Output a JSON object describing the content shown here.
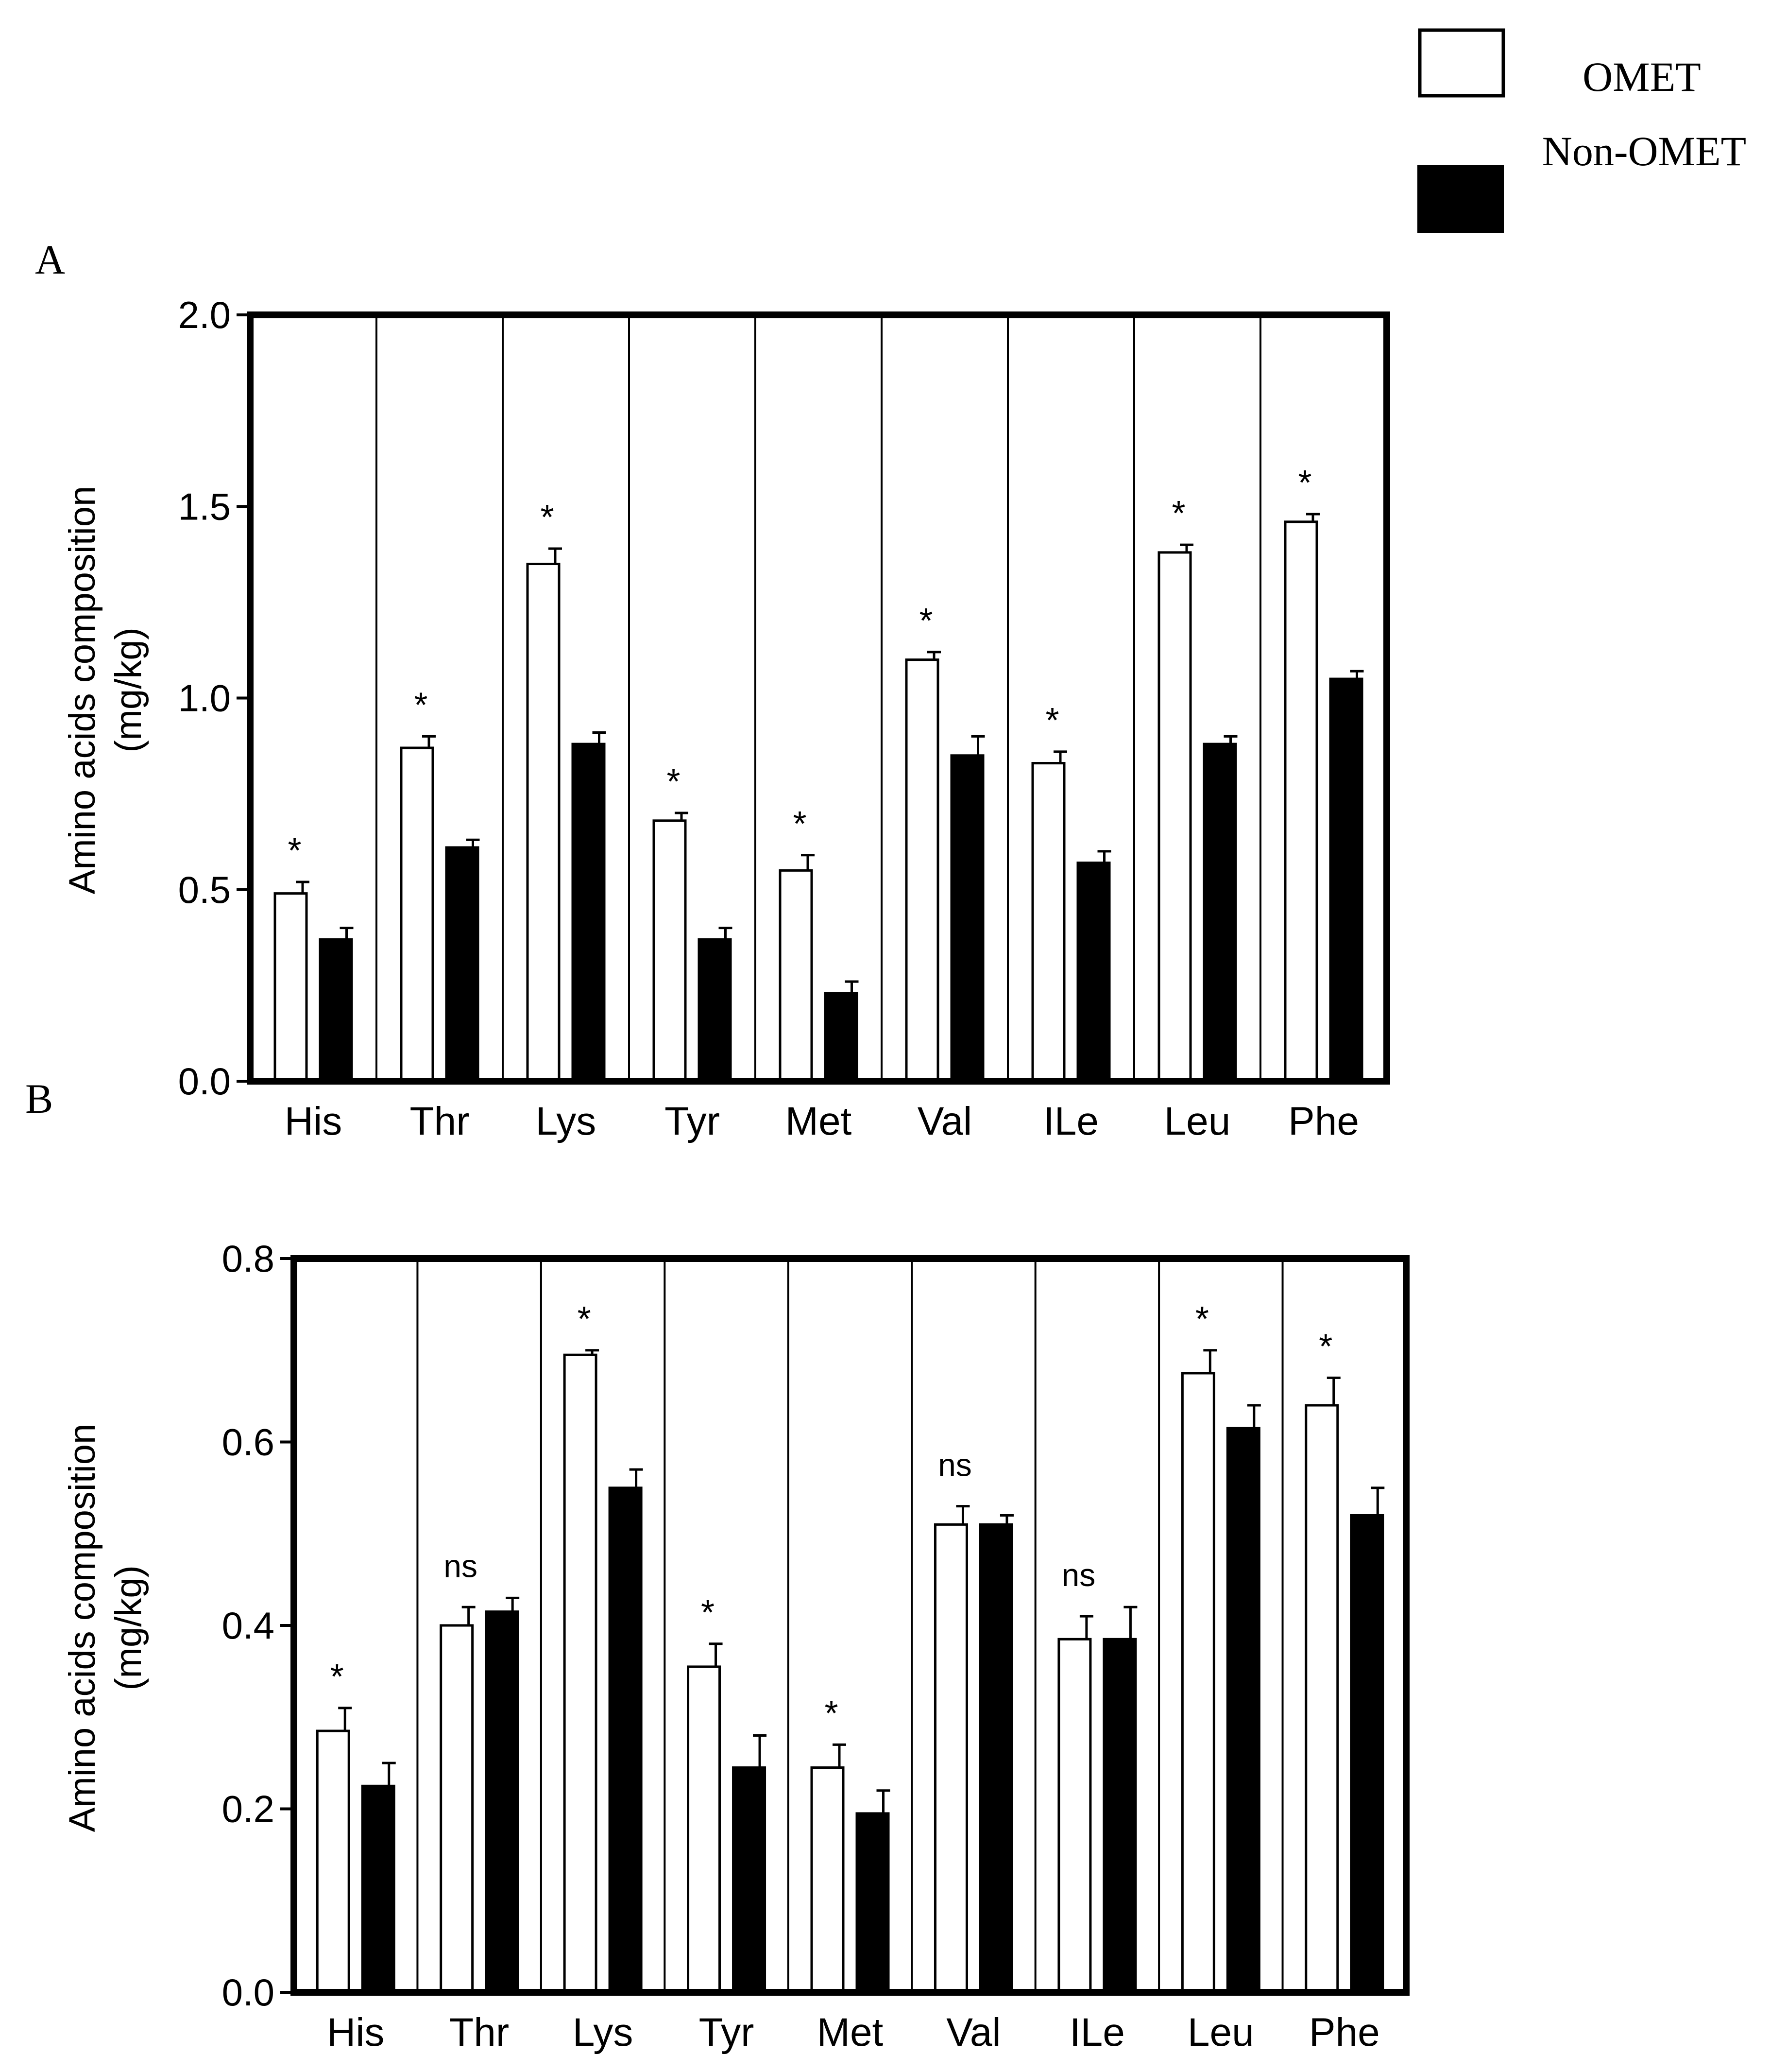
{
  "legend": {
    "entries": [
      {
        "label": "OMET",
        "fill": "#ffffff"
      },
      {
        "label": "Non-OMET",
        "fill": "#000000"
      }
    ]
  },
  "chart_data": [
    {
      "panel_label": "A",
      "type": "bar",
      "ylabel_line1": "Amino acids composition",
      "ylabel_line2": "(mg/kg)",
      "ylim": [
        0,
        2.0
      ],
      "yticks": [
        0.0,
        0.5,
        1.0,
        1.5,
        2.0
      ],
      "ytick_labels": [
        "0.0",
        "0.5",
        "1.0",
        "1.5",
        "2.0"
      ],
      "categories": [
        "His",
        "Thr",
        "Lys",
        "Tyr",
        "Met",
        "Val",
        "ILe",
        "Leu",
        "Phe"
      ],
      "series": [
        {
          "name": "OMET",
          "fill": "#ffffff",
          "values": [
            0.49,
            0.87,
            1.35,
            0.68,
            0.55,
            1.1,
            0.83,
            1.38,
            1.46
          ],
          "errors": [
            0.03,
            0.03,
            0.04,
            0.02,
            0.04,
            0.02,
            0.03,
            0.02,
            0.02
          ]
        },
        {
          "name": "Non-OMET",
          "fill": "#000000",
          "values": [
            0.37,
            0.61,
            0.88,
            0.37,
            0.23,
            0.85,
            0.57,
            0.88,
            1.05
          ],
          "errors": [
            0.03,
            0.02,
            0.03,
            0.03,
            0.03,
            0.05,
            0.03,
            0.02,
            0.02
          ]
        }
      ],
      "annotations": [
        "*",
        "*",
        "*",
        "*",
        "*",
        "*",
        "*",
        "*",
        "*"
      ]
    },
    {
      "panel_label": "B",
      "type": "bar",
      "ylabel_line1": "Amino acids composition",
      "ylabel_line2": "(mg/kg)",
      "ylim": [
        0,
        0.8
      ],
      "yticks": [
        0.0,
        0.2,
        0.4,
        0.6,
        0.8
      ],
      "ytick_labels": [
        "0.0",
        "0.2",
        "0.4",
        "0.6",
        "0.8"
      ],
      "categories": [
        "His",
        "Thr",
        "Lys",
        "Tyr",
        "Met",
        "Val",
        "ILe",
        "Leu",
        "Phe"
      ],
      "series": [
        {
          "name": "OMET",
          "fill": "#ffffff",
          "values": [
            0.285,
            0.4,
            0.695,
            0.355,
            0.245,
            0.51,
            0.385,
            0.675,
            0.64
          ],
          "errors": [
            0.025,
            0.02,
            0.005,
            0.025,
            0.025,
            0.02,
            0.025,
            0.025,
            0.03
          ]
        },
        {
          "name": "Non-OMET",
          "fill": "#000000",
          "values": [
            0.225,
            0.415,
            0.55,
            0.245,
            0.195,
            0.51,
            0.385,
            0.615,
            0.52
          ],
          "errors": [
            0.025,
            0.015,
            0.02,
            0.035,
            0.025,
            0.01,
            0.035,
            0.025,
            0.03
          ]
        }
      ],
      "annotations": [
        "*",
        "ns",
        "*",
        "*",
        "*",
        "ns",
        "ns",
        "*",
        "*"
      ]
    }
  ]
}
